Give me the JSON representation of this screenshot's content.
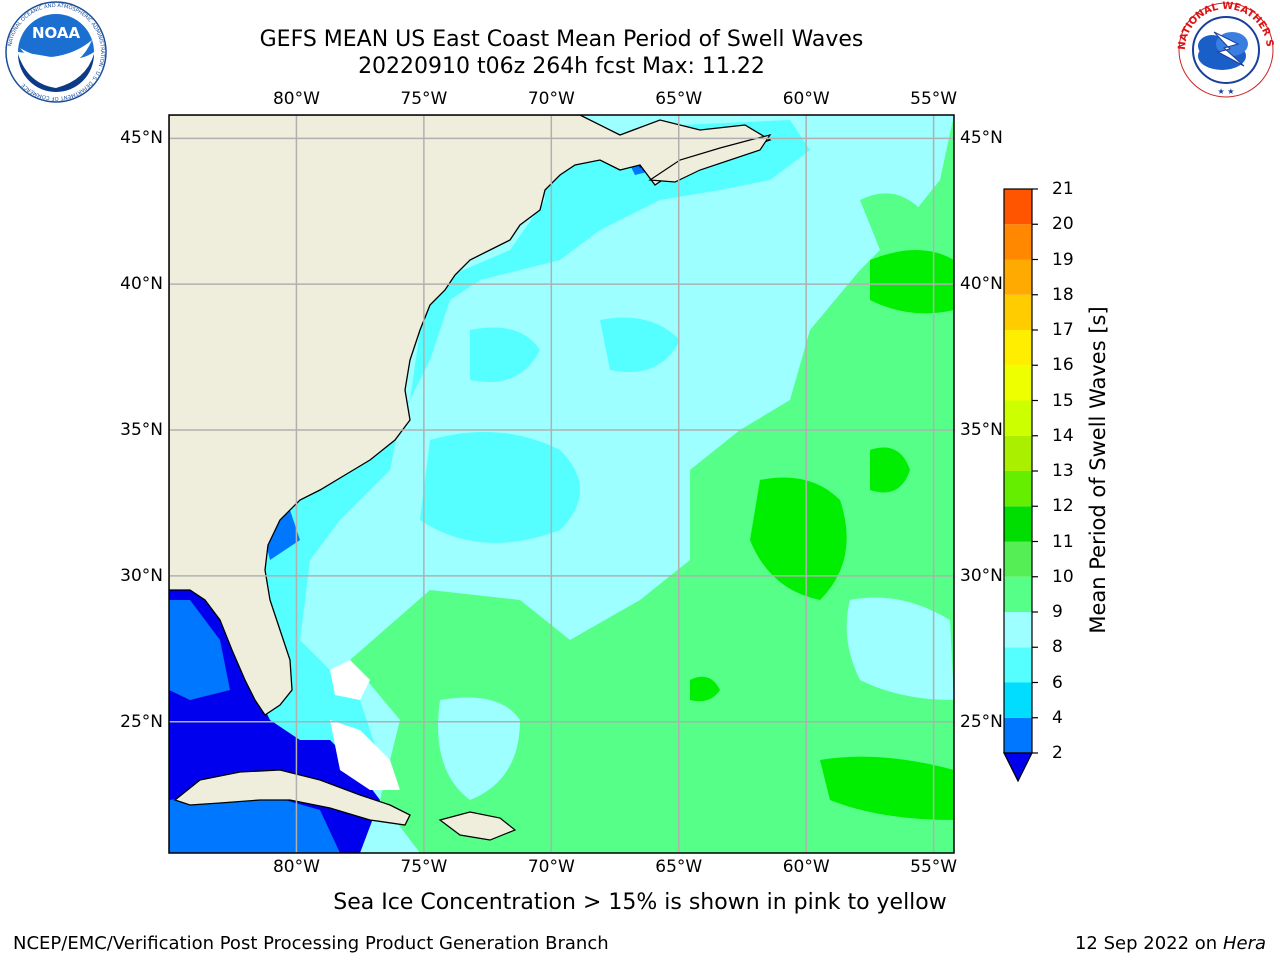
{
  "header": {
    "title_line1": "GEFS MEAN US East Coast Mean Period of Swell Waves",
    "title_line2": "20220910 t06z 264h fcst   Max: 11.22"
  },
  "logos": {
    "left": "NOAA",
    "left_ring_text": "NATIONAL OCEANIC AND ATMOSPHERIC ADMINISTRATION · U.S. DEPARTMENT OF COMMERCE",
    "right_ring_text": "NATIONAL WEATHER SERVICE"
  },
  "map": {
    "projection": "cylindrical",
    "lon_range": [
      -85,
      -54.2
    ],
    "lat_range": [
      20.5,
      45.8
    ],
    "gridlines": true,
    "lon_ticks": [
      {
        "value": -80,
        "label": "80°W"
      },
      {
        "value": -75,
        "label": "75°W"
      },
      {
        "value": -70,
        "label": "70°W"
      },
      {
        "value": -65,
        "label": "65°W"
      },
      {
        "value": -60,
        "label": "60°W"
      },
      {
        "value": -55,
        "label": "55°W"
      }
    ],
    "lat_ticks": [
      {
        "value": 45,
        "label": "45°N"
      },
      {
        "value": 40,
        "label": "40°N"
      },
      {
        "value": 35,
        "label": "35°N"
      },
      {
        "value": 30,
        "label": "30°N"
      },
      {
        "value": 25,
        "label": "25°N"
      }
    ],
    "colors": {
      "land": "#efeedc",
      "grid": "#b0b0b0",
      "coast": "#000000"
    }
  },
  "colorbar": {
    "title": "Mean Period of Swell Waves [s]",
    "ticks": [
      "2",
      "4",
      "6",
      "8",
      "9",
      "10",
      "11",
      "12",
      "13",
      "14",
      "15",
      "16",
      "17",
      "18",
      "19",
      "20",
      "21"
    ],
    "under_color": "#0000ee",
    "colors": [
      "#0077ff",
      "#00ddff",
      "#55ffff",
      "#9dffff",
      "#55ff88",
      "#55ee55",
      "#00dd00",
      "#66ee00",
      "#aaee00",
      "#ccff00",
      "#eeff00",
      "#ffee00",
      "#ffcc00",
      "#ffaa00",
      "#ff8800",
      "#ff5500",
      "#ff2200",
      "#ff0000"
    ]
  },
  "notes": {
    "ice": "Sea Ice Concentration > 15% is shown in pink to yellow",
    "footer_left": "NCEP/EMC/Verification Post Processing Product Generation Branch",
    "footer_date": "12 Sep 2022 on",
    "footer_machine": "Hera"
  }
}
